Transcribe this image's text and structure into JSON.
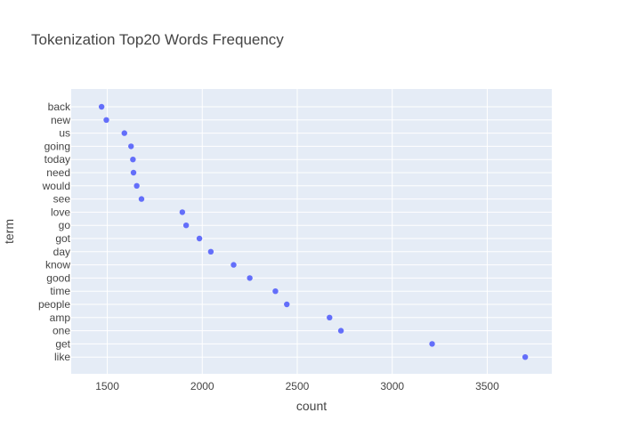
{
  "chart_data": {
    "type": "scatter",
    "title": "Tokenization Top20 Words Frequency",
    "xlabel": "count",
    "ylabel": "term",
    "xlim": [
      1310,
      3840
    ],
    "xticks": [
      1500,
      2000,
      2500,
      3000,
      3500
    ],
    "grid": true,
    "marker_color": "#636efa",
    "plot_background": "#e5ecf6",
    "grid_color": "#ffffff",
    "points": [
      {
        "term": "back",
        "count": 1470
      },
      {
        "term": "new",
        "count": 1495
      },
      {
        "term": "us",
        "count": 1590
      },
      {
        "term": "going",
        "count": 1625
      },
      {
        "term": "today",
        "count": 1635
      },
      {
        "term": "need",
        "count": 1638
      },
      {
        "term": "would",
        "count": 1655
      },
      {
        "term": "see",
        "count": 1680
      },
      {
        "term": "love",
        "count": 1895
      },
      {
        "term": "go",
        "count": 1915
      },
      {
        "term": "got",
        "count": 1985
      },
      {
        "term": "day",
        "count": 2045
      },
      {
        "term": "know",
        "count": 2165
      },
      {
        "term": "good",
        "count": 2250
      },
      {
        "term": "time",
        "count": 2385
      },
      {
        "term": "people",
        "count": 2445
      },
      {
        "term": "amp",
        "count": 2670
      },
      {
        "term": "one",
        "count": 2730
      },
      {
        "term": "get",
        "count": 3210
      },
      {
        "term": "like",
        "count": 3700
      }
    ]
  }
}
